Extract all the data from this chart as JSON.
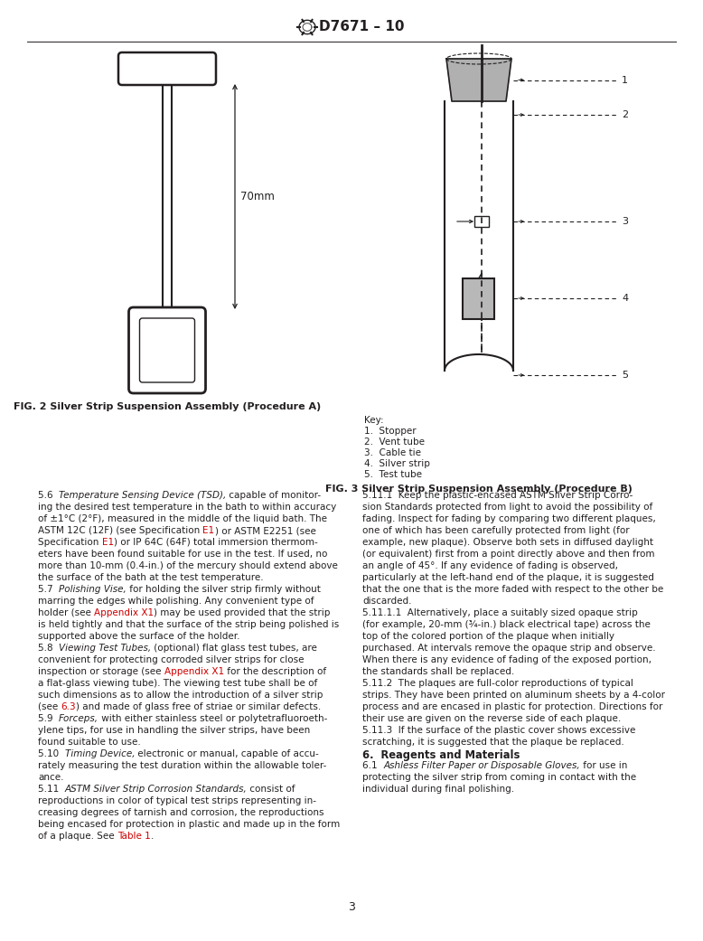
{
  "title": "D7671 – 10",
  "bg_color": "#ffffff",
  "tc": "#231f20",
  "rc": "#cc0000",
  "page_number": "3",
  "fig2_caption": "FIG. 2 Silver Strip Suspension Assembly (Procedure A)",
  "fig3_caption": "FIG. 3 Silver Strip Suspension Assembly (Procedure B)",
  "key_lines": [
    "Key:",
    "1.  Stopper",
    "2.  Vent tube",
    "3.  Cable tie",
    "4.  Silver strip",
    "5.  Test tube"
  ],
  "col1": [
    [
      [
        "n",
        "5.6  "
      ],
      [
        "i",
        "Temperature Sensing Device (TSD),"
      ],
      [
        "n",
        " capable of monitor-"
      ]
    ],
    [
      [
        "n",
        "ing the desired test temperature in the bath to within accuracy"
      ]
    ],
    [
      [
        "n",
        "of ±1°C (2°F), measured in the middle of the liquid bath. The"
      ]
    ],
    [
      [
        "n",
        "ASTM 12C (12F) (see Specification "
      ],
      [
        "r",
        "E1"
      ],
      [
        "n",
        ") or ASTM E2251 (see"
      ]
    ],
    [
      [
        "n",
        "Specification "
      ],
      [
        "r",
        "E1"
      ],
      [
        "n",
        ") or IP 64C (64F) total immersion thermom-"
      ]
    ],
    [
      [
        "n",
        "eters have been found suitable for use in the test. If used, no"
      ]
    ],
    [
      [
        "n",
        "more than 10-mm (0.4-in.) of the mercury should extend above"
      ]
    ],
    [
      [
        "n",
        "the surface of the bath at the test temperature."
      ]
    ],
    [
      [
        "n",
        "5.7  "
      ],
      [
        "i",
        "Polishing Vise,"
      ],
      [
        "n",
        " for holding the silver strip firmly without"
      ]
    ],
    [
      [
        "n",
        "marring the edges while polishing. Any convenient type of"
      ]
    ],
    [
      [
        "n",
        "holder (see "
      ],
      [
        "r",
        "Appendix X1"
      ],
      [
        "n",
        ") may be used provided that the strip"
      ]
    ],
    [
      [
        "n",
        "is held tightly and that the surface of the strip being polished is"
      ]
    ],
    [
      [
        "n",
        "supported above the surface of the holder."
      ]
    ],
    [
      [
        "n",
        "5.8  "
      ],
      [
        "i",
        "Viewing Test Tubes,"
      ],
      [
        "n",
        " (optional) flat glass test tubes, are"
      ]
    ],
    [
      [
        "n",
        "convenient for protecting corroded silver strips for close"
      ]
    ],
    [
      [
        "n",
        "inspection or storage (see "
      ],
      [
        "r",
        "Appendix X1"
      ],
      [
        "n",
        " for the description of"
      ]
    ],
    [
      [
        "n",
        "a flat-glass viewing tube). The viewing test tube shall be of"
      ]
    ],
    [
      [
        "n",
        "such dimensions as to allow the introduction of a silver strip"
      ]
    ],
    [
      [
        "n",
        "(see "
      ],
      [
        "r",
        "6.3"
      ],
      [
        "n",
        ") and made of glass free of striae or similar defects."
      ]
    ],
    [
      [
        "n",
        "5.9  "
      ],
      [
        "i",
        "Forceps,"
      ],
      [
        "n",
        " with either stainless steel or polytetrafluoroeth-"
      ]
    ],
    [
      [
        "n",
        "ylene tips, for use in handling the silver strips, have been"
      ]
    ],
    [
      [
        "n",
        "found suitable to use."
      ]
    ],
    [
      [
        "n",
        "5.10  "
      ],
      [
        "i",
        "Timing Device,"
      ],
      [
        "n",
        " electronic or manual, capable of accu-"
      ]
    ],
    [
      [
        "n",
        "rately measuring the test duration within the allowable toler-"
      ]
    ],
    [
      [
        "n",
        "ance."
      ]
    ],
    [
      [
        "n",
        "5.11  "
      ],
      [
        "i",
        "ASTM Silver Strip Corrosion Standards,"
      ],
      [
        "n",
        " consist of"
      ]
    ],
    [
      [
        "n",
        "reproductions in color of typical test strips representing in-"
      ]
    ],
    [
      [
        "n",
        "creasing degrees of tarnish and corrosion, the reproductions"
      ]
    ],
    [
      [
        "n",
        "being encased for protection in plastic and made up in the form"
      ]
    ],
    [
      [
        "n",
        "of a plaque. See "
      ],
      [
        "r",
        "Table 1"
      ],
      [
        "n",
        "."
      ]
    ]
  ],
  "col2": [
    [
      [
        "n",
        "5.11.1  Keep the plastic-encased ASTM Silver Strip Corro-"
      ]
    ],
    [
      [
        "n",
        "sion Standards protected from light to avoid the possibility of"
      ]
    ],
    [
      [
        "n",
        "fading. Inspect for fading by comparing two different plaques,"
      ]
    ],
    [
      [
        "n",
        "one of which has been carefully protected from light (for"
      ]
    ],
    [
      [
        "n",
        "example, new plaque). Observe both sets in diffused daylight"
      ]
    ],
    [
      [
        "n",
        "(or equivalent) first from a point directly above and then from"
      ]
    ],
    [
      [
        "n",
        "an angle of 45°. If any evidence of fading is observed,"
      ]
    ],
    [
      [
        "n",
        "particularly at the left-hand end of the plaque, it is suggested"
      ]
    ],
    [
      [
        "n",
        "that the one that is the more faded with respect to the other be"
      ]
    ],
    [
      [
        "n",
        "discarded."
      ]
    ],
    [
      [
        "n",
        "5.11.1.1  Alternatively, place a suitably sized opaque strip"
      ]
    ],
    [
      [
        "n",
        "(for example, 20-mm (¾-in.) black electrical tape) across the"
      ]
    ],
    [
      [
        "n",
        "top of the colored portion of the plaque when initially"
      ]
    ],
    [
      [
        "n",
        "purchased. At intervals remove the opaque strip and observe."
      ]
    ],
    [
      [
        "n",
        "When there is any evidence of fading of the exposed portion,"
      ]
    ],
    [
      [
        "n",
        "the standards shall be replaced."
      ]
    ],
    [
      [
        "n",
        "5.11.2  The plaques are full-color reproductions of typical"
      ]
    ],
    [
      [
        "n",
        "strips. They have been printed on aluminum sheets by a 4-color"
      ]
    ],
    [
      [
        "n",
        "process and are encased in plastic for protection. Directions for"
      ]
    ],
    [
      [
        "n",
        "their use are given on the reverse side of each plaque."
      ]
    ],
    [
      [
        "n",
        "5.11.3  If the surface of the plastic cover shows excessive"
      ]
    ],
    [
      [
        "n",
        "scratching, it is suggested that the plaque be replaced."
      ]
    ],
    [
      [
        "b",
        "6.  Reagents and Materials"
      ]
    ],
    [
      [
        "n",
        "6.1  "
      ],
      [
        "i",
        "Ashless Filter Paper or Disposable Gloves,"
      ],
      [
        "n",
        " for use in"
      ]
    ],
    [
      [
        "n",
        "protecting the silver strip from coming in contact with the"
      ]
    ],
    [
      [
        "n",
        "individual during final polishing."
      ]
    ]
  ]
}
